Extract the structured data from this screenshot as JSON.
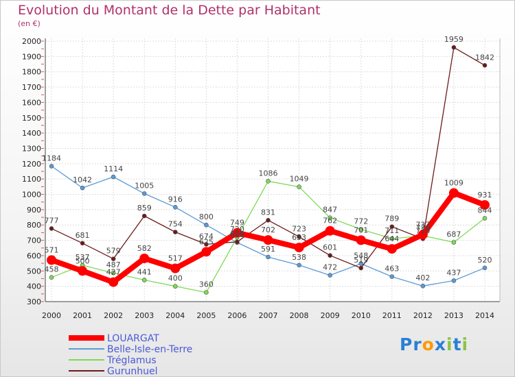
{
  "chart_data": {
    "type": "line",
    "title": "Evolution du Montant de la Dette par Habitant",
    "subtitle": "(en €)",
    "x": [
      "2000",
      "2001",
      "2002",
      "2003",
      "2004",
      "2005",
      "2006",
      "2007",
      "2008",
      "2009",
      "2010",
      "2011",
      "2012",
      "2013",
      "2014"
    ],
    "ylim": [
      300,
      2000
    ],
    "yticks": [
      300,
      400,
      500,
      600,
      700,
      800,
      900,
      1000,
      1100,
      1200,
      1300,
      1400,
      1500,
      1600,
      1700,
      1800,
      1900,
      2000
    ],
    "grid": true,
    "legend_position": "bottom-left",
    "series": [
      {
        "name": "LOUARGAT",
        "color": "#ff0000",
        "values": [
          571,
          500,
          427,
          582,
          517,
          625,
          749,
          702,
          653,
          762,
          701,
          644,
          737,
          1009,
          931
        ]
      },
      {
        "name": "Belle-Isle-en-Terre",
        "color": "#5a9bd5",
        "values": [
          1184,
          1042,
          1114,
          1005,
          916,
          800,
          685,
          591,
          538,
          472,
          548,
          463,
          402,
          437,
          520
        ]
      },
      {
        "name": "Tréglamus",
        "color": "#7ed957",
        "values": [
          458,
          537,
          487,
          441,
          400,
          360,
          720,
          1086,
          1049,
          847,
          772,
          711,
          730,
          687,
          844
        ]
      },
      {
        "name": "Gurunhuel",
        "color": "#6b1a1a",
        "values": [
          777,
          681,
          579,
          859,
          754,
          674,
          690,
          831,
          723,
          601,
          519,
          789,
          710,
          1959,
          1842
        ]
      }
    ]
  },
  "logo": {
    "text": "Proxiti",
    "letters": [
      "P",
      "r",
      "o",
      "x",
      "i",
      "t",
      "i"
    ],
    "colors": [
      "#2a7fd4",
      "#2a7fd4",
      "#ff9900",
      "#2a7fd4",
      "#8bc34a",
      "#2a7fd4",
      "#8bc34a"
    ]
  }
}
